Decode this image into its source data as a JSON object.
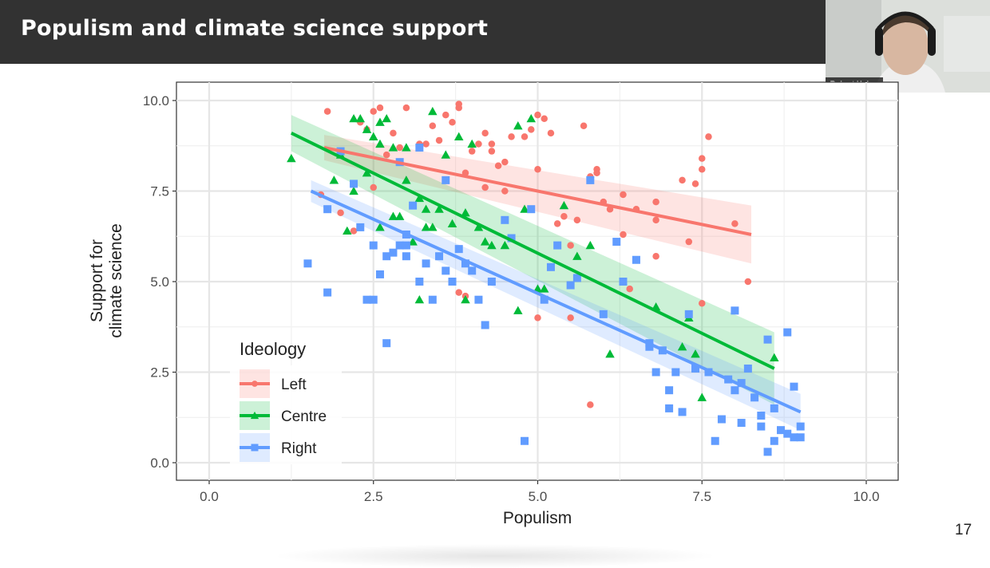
{
  "slide": {
    "title": "Populism and climate science support",
    "page_number": "17",
    "title_bar_color": "#323232"
  },
  "webcam": {
    "name_label": "Robert Huber"
  },
  "chart_data": {
    "type": "scatter",
    "xlabel": "Populism",
    "ylabel_lines": [
      "Support for",
      "climate science"
    ],
    "xlim": [
      -0.5,
      10.5
    ],
    "ylim": [
      -0.5,
      10.5
    ],
    "xticks": [
      0,
      2.5,
      5,
      7.5,
      10
    ],
    "xtick_labels": [
      "0.0",
      "2.5",
      "5.0",
      "7.5",
      "10.0"
    ],
    "yticks": [
      0,
      2.5,
      5,
      7.5,
      10
    ],
    "ytick_labels": [
      "0.0",
      "2.5",
      "5.0",
      "7.5",
      "10.0"
    ],
    "grid": true,
    "legend": {
      "title": "Ideology",
      "placement": "bottom-left"
    },
    "series": [
      {
        "name": "Left",
        "marker": "circle",
        "color": "#F8766D",
        "fit": {
          "x": [
            1.75,
            8.25
          ],
          "y": [
            8.7,
            6.3
          ],
          "band": [
            0.35,
            0.8
          ]
        },
        "points": [
          [
            1.8,
            9.7
          ],
          [
            2.0,
            6.9
          ],
          [
            2.2,
            6.4
          ],
          [
            2.3,
            9.4
          ],
          [
            2.4,
            9.2
          ],
          [
            2.5,
            9.7
          ],
          [
            2.6,
            9.8
          ],
          [
            2.5,
            7.6
          ],
          [
            2.9,
            8.7
          ],
          [
            3.0,
            9.8
          ],
          [
            2.7,
            8.5
          ],
          [
            3.2,
            8.8
          ],
          [
            3.3,
            8.8
          ],
          [
            3.4,
            9.3
          ],
          [
            3.5,
            8.9
          ],
          [
            3.6,
            9.6
          ],
          [
            3.7,
            9.4
          ],
          [
            3.8,
            9.9
          ],
          [
            3.8,
            9.8
          ],
          [
            3.9,
            8.0
          ],
          [
            4.0,
            8.6
          ],
          [
            4.1,
            8.8
          ],
          [
            4.2,
            9.1
          ],
          [
            4.2,
            7.6
          ],
          [
            4.3,
            8.6
          ],
          [
            4.3,
            8.8
          ],
          [
            4.4,
            8.2
          ],
          [
            4.5,
            8.3
          ],
          [
            4.5,
            7.5
          ],
          [
            4.6,
            9.0
          ],
          [
            4.8,
            9.0
          ],
          [
            4.9,
            9.2
          ],
          [
            5.0,
            9.6
          ],
          [
            5.1,
            9.5
          ],
          [
            5.0,
            8.1
          ],
          [
            5.2,
            9.1
          ],
          [
            5.3,
            6.6
          ],
          [
            5.4,
            6.8
          ],
          [
            5.5,
            6.0
          ],
          [
            5.6,
            6.7
          ],
          [
            5.7,
            9.3
          ],
          [
            5.8,
            7.9
          ],
          [
            5.9,
            8.0
          ],
          [
            5.9,
            8.1
          ],
          [
            6.1,
            7.0
          ],
          [
            6.3,
            7.4
          ],
          [
            6.3,
            6.3
          ],
          [
            6.5,
            7.0
          ],
          [
            6.8,
            6.7
          ],
          [
            6.8,
            7.2
          ],
          [
            6.8,
            5.7
          ],
          [
            7.2,
            7.8
          ],
          [
            7.3,
            6.1
          ],
          [
            7.4,
            7.7
          ],
          [
            7.5,
            8.4
          ],
          [
            7.5,
            8.1
          ],
          [
            7.6,
            9.0
          ],
          [
            7.5,
            4.4
          ],
          [
            8.0,
            6.6
          ],
          [
            8.2,
            5.0
          ],
          [
            5.8,
            1.6
          ],
          [
            5.0,
            4.0
          ],
          [
            5.5,
            4.0
          ],
          [
            3.8,
            4.7
          ],
          [
            3.9,
            4.6
          ],
          [
            6.4,
            4.8
          ],
          [
            6.0,
            7.2
          ],
          [
            1.7,
            7.4
          ],
          [
            2.0,
            8.6
          ],
          [
            2.8,
            9.1
          ]
        ]
      },
      {
        "name": "Centre",
        "marker": "triangle",
        "color": "#00BA38",
        "fit": {
          "x": [
            1.25,
            8.6
          ],
          "y": [
            9.1,
            2.6
          ],
          "band": [
            0.5,
            1.0
          ]
        },
        "points": [
          [
            1.25,
            8.4
          ],
          [
            1.9,
            7.8
          ],
          [
            2.0,
            8.5
          ],
          [
            2.1,
            6.4
          ],
          [
            2.2,
            9.5
          ],
          [
            2.3,
            9.5
          ],
          [
            2.4,
            9.2
          ],
          [
            2.5,
            9.0
          ],
          [
            2.6,
            9.4
          ],
          [
            2.6,
            8.8
          ],
          [
            2.7,
            9.5
          ],
          [
            2.8,
            8.7
          ],
          [
            2.9,
            6.8
          ],
          [
            3.0,
            8.7
          ],
          [
            3.1,
            6.1
          ],
          [
            3.2,
            7.3
          ],
          [
            3.3,
            6.5
          ],
          [
            3.4,
            9.7
          ],
          [
            3.5,
            7.0
          ],
          [
            3.6,
            8.5
          ],
          [
            3.7,
            6.6
          ],
          [
            3.8,
            9.0
          ],
          [
            3.9,
            6.9
          ],
          [
            4.0,
            8.8
          ],
          [
            4.1,
            6.5
          ],
          [
            4.2,
            6.1
          ],
          [
            4.3,
            6.0
          ],
          [
            4.5,
            6.0
          ],
          [
            4.7,
            9.3
          ],
          [
            4.9,
            9.5
          ],
          [
            4.8,
            7.0
          ],
          [
            5.1,
            4.8
          ],
          [
            5.4,
            7.1
          ],
          [
            5.6,
            5.7
          ],
          [
            5.8,
            6.0
          ],
          [
            6.1,
            3.0
          ],
          [
            6.8,
            4.3
          ],
          [
            7.2,
            3.2
          ],
          [
            7.3,
            4.0
          ],
          [
            7.4,
            3.0
          ],
          [
            7.5,
            1.8
          ],
          [
            8.6,
            2.9
          ],
          [
            3.2,
            4.5
          ],
          [
            3.9,
            4.5
          ],
          [
            4.7,
            4.2
          ],
          [
            2.2,
            7.5
          ],
          [
            2.4,
            8.0
          ],
          [
            2.6,
            6.5
          ],
          [
            2.8,
            6.8
          ],
          [
            3.0,
            7.8
          ],
          [
            3.3,
            7.0
          ],
          [
            3.4,
            6.5
          ],
          [
            5.0,
            4.8
          ]
        ]
      },
      {
        "name": "Right",
        "marker": "square",
        "color": "#619CFF",
        "fit": {
          "x": [
            1.55,
            9.0
          ],
          "y": [
            7.5,
            1.4
          ],
          "band": [
            0.3,
            0.5
          ]
        },
        "points": [
          [
            1.5,
            5.5
          ],
          [
            1.8,
            4.7
          ],
          [
            1.8,
            7.0
          ],
          [
            2.0,
            8.6
          ],
          [
            2.3,
            6.5
          ],
          [
            2.4,
            4.5
          ],
          [
            2.5,
            4.5
          ],
          [
            2.5,
            6.0
          ],
          [
            2.6,
            5.2
          ],
          [
            2.7,
            5.7
          ],
          [
            2.7,
            3.3
          ],
          [
            2.8,
            5.8
          ],
          [
            2.9,
            6.0
          ],
          [
            3.0,
            5.7
          ],
          [
            3.0,
            6.0
          ],
          [
            3.1,
            7.1
          ],
          [
            3.2,
            5.0
          ],
          [
            3.3,
            5.5
          ],
          [
            3.4,
            4.5
          ],
          [
            3.5,
            5.7
          ],
          [
            3.6,
            5.3
          ],
          [
            3.7,
            5.0
          ],
          [
            3.8,
            5.9
          ],
          [
            3.9,
            5.5
          ],
          [
            4.0,
            5.3
          ],
          [
            4.1,
            4.5
          ],
          [
            4.2,
            3.8
          ],
          [
            4.3,
            5.0
          ],
          [
            4.5,
            6.7
          ],
          [
            4.6,
            6.2
          ],
          [
            4.9,
            7.0
          ],
          [
            5.1,
            4.5
          ],
          [
            5.2,
            5.4
          ],
          [
            5.5,
            4.9
          ],
          [
            5.6,
            5.1
          ],
          [
            5.8,
            7.8
          ],
          [
            6.0,
            4.1
          ],
          [
            6.3,
            5.0
          ],
          [
            6.5,
            5.6
          ],
          [
            6.7,
            3.3
          ],
          [
            6.8,
            2.5
          ],
          [
            6.9,
            3.1
          ],
          [
            7.0,
            2.0
          ],
          [
            7.0,
            1.5
          ],
          [
            7.1,
            2.5
          ],
          [
            7.2,
            1.4
          ],
          [
            7.3,
            4.1
          ],
          [
            7.4,
            2.6
          ],
          [
            7.6,
            2.5
          ],
          [
            7.7,
            0.6
          ],
          [
            7.9,
            2.3
          ],
          [
            8.0,
            2.0
          ],
          [
            8.1,
            2.2
          ],
          [
            8.2,
            2.6
          ],
          [
            8.3,
            1.8
          ],
          [
            8.4,
            1.3
          ],
          [
            8.4,
            1.0
          ],
          [
            8.5,
            0.3
          ],
          [
            8.5,
            3.4
          ],
          [
            8.6,
            1.5
          ],
          [
            8.7,
            0.9
          ],
          [
            8.8,
            0.8
          ],
          [
            8.8,
            3.6
          ],
          [
            8.9,
            2.1
          ],
          [
            8.9,
            0.7
          ],
          [
            9.0,
            1.0
          ],
          [
            9.0,
            0.7
          ],
          [
            4.8,
            0.6
          ],
          [
            8.0,
            4.2
          ],
          [
            3.2,
            8.7
          ],
          [
            2.2,
            7.7
          ],
          [
            2.9,
            8.3
          ],
          [
            3.0,
            6.3
          ],
          [
            6.2,
            6.1
          ],
          [
            6.7,
            3.2
          ],
          [
            7.8,
            1.2
          ],
          [
            8.1,
            1.1
          ],
          [
            8.6,
            0.6
          ],
          [
            3.6,
            7.8
          ],
          [
            5.3,
            6.0
          ]
        ]
      }
    ]
  }
}
